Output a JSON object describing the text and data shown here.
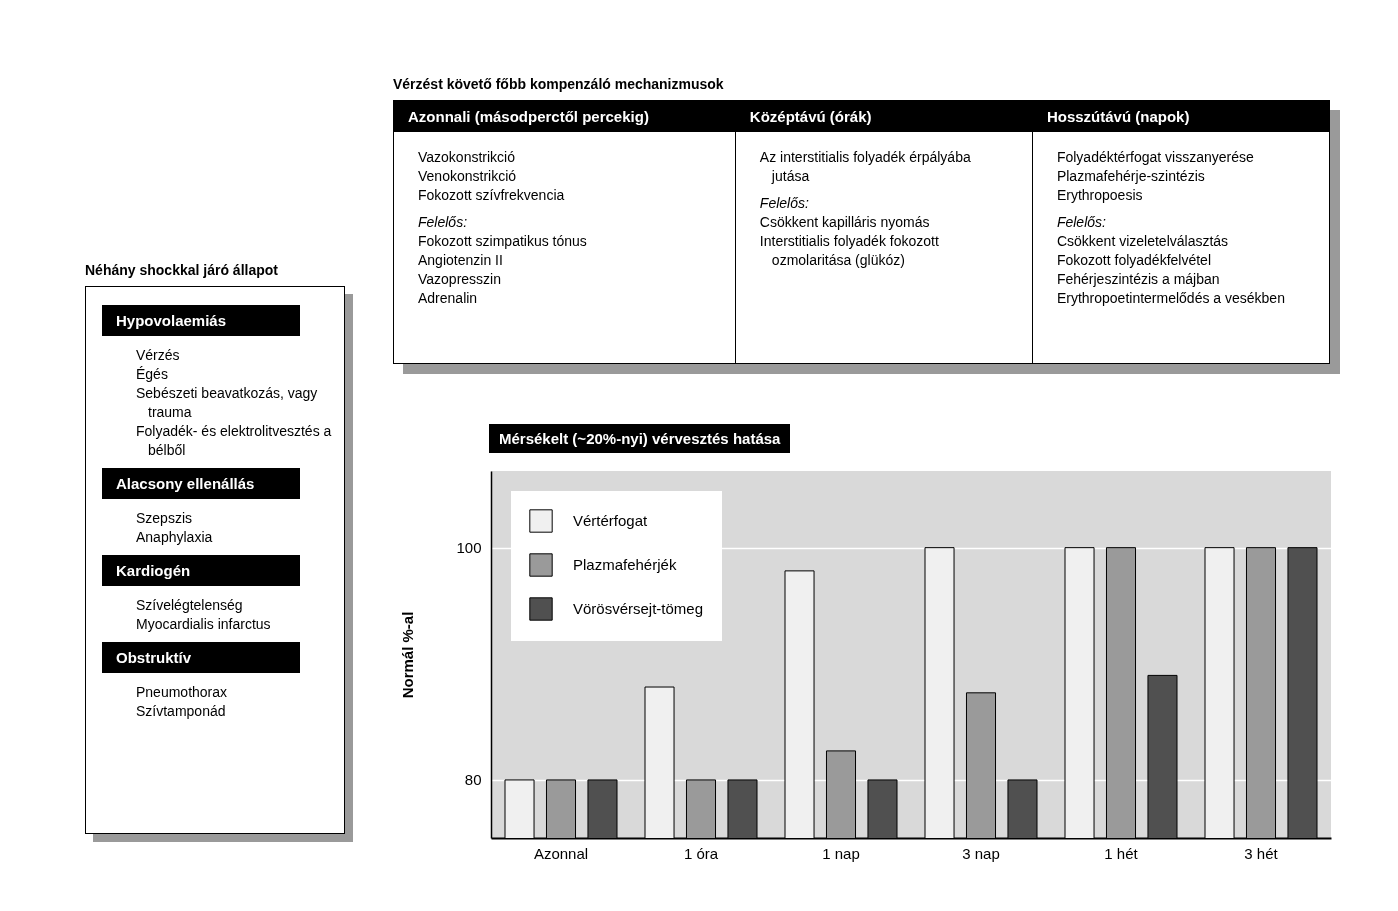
{
  "chart_data": [
    {
      "type": "other",
      "title": "Vérzést követő főbb kompenzáló mechanizmusok",
      "categories": [
        "Azonnali (másodperctől percekig)",
        "Középtávú (órák)",
        "Hosszútávú (napok)"
      ],
      "annotations": [
        "Vazokonstrikció\nVenokonstrikció\nFokozott szívfrekvencia",
        "Felelős:\nFokozott szimpatikus tónus\nAngiotenzin II\nVazopresszin\nAdrenalin",
        "Az interstitialis folyadék érpályába jutása",
        "Felelős:\nCsökkent kapilláris nyomás\nInterstitialis folyadék fokozott ozmolaritása (glükóz)",
        "Folyadéktérfogat visszanyerése\nPlazmafehérje-szintézis\nErythropoesis",
        "Felelős:\nCsökkent vizeletelválasztás\nFokozott folyadékfelvétel\nFehérjeszintézis a májban\nErythropoetintermelődés a vesékben"
      ]
    },
    {
      "type": "other",
      "title": "Néhány shockkal járó állapot",
      "categories": [
        "Hypovolaemiás",
        "Alacsony ellenállás",
        "Kardiogén",
        "Obstruktív"
      ],
      "annotations": [
        "Vérzés\nÉgés\nSebészeti beavatkozás, vagy trauma\nFolyadék- és elektrolitvesztés a bélből",
        "Szepszis\nAnaphylaxia",
        "Szívelégtelenség\nMyocardialis infarctus",
        "Pneumothorax\nSzívtamponád"
      ]
    },
    {
      "type": "bar",
      "title": "Mérsékelt (~20%-nyi) vérvesztés hatása",
      "ylabel": "Normál %-al",
      "categories": [
        "Azonnal",
        "1 óra",
        "1 nap",
        "3 nap",
        "1 hét",
        "3 hét"
      ],
      "series": [
        {
          "name": "Vértérfogat",
          "color": "#f0f0f0",
          "values": [
            80,
            88,
            98,
            100,
            100,
            100
          ]
        },
        {
          "name": "Plazmafehérjék",
          "color": "#9a9a9a",
          "values": [
            80,
            80,
            82.5,
            87.5,
            100,
            100
          ]
        },
        {
          "name": "Vörösvérsejt-tömeg",
          "color": "#505050",
          "values": [
            80,
            80,
            80,
            80,
            89,
            100
          ]
        }
      ],
      "ylim": [
        75,
        106.6
      ],
      "yticks": [
        80,
        100
      ],
      "grid": "y",
      "legend": "top left"
    }
  ]
}
